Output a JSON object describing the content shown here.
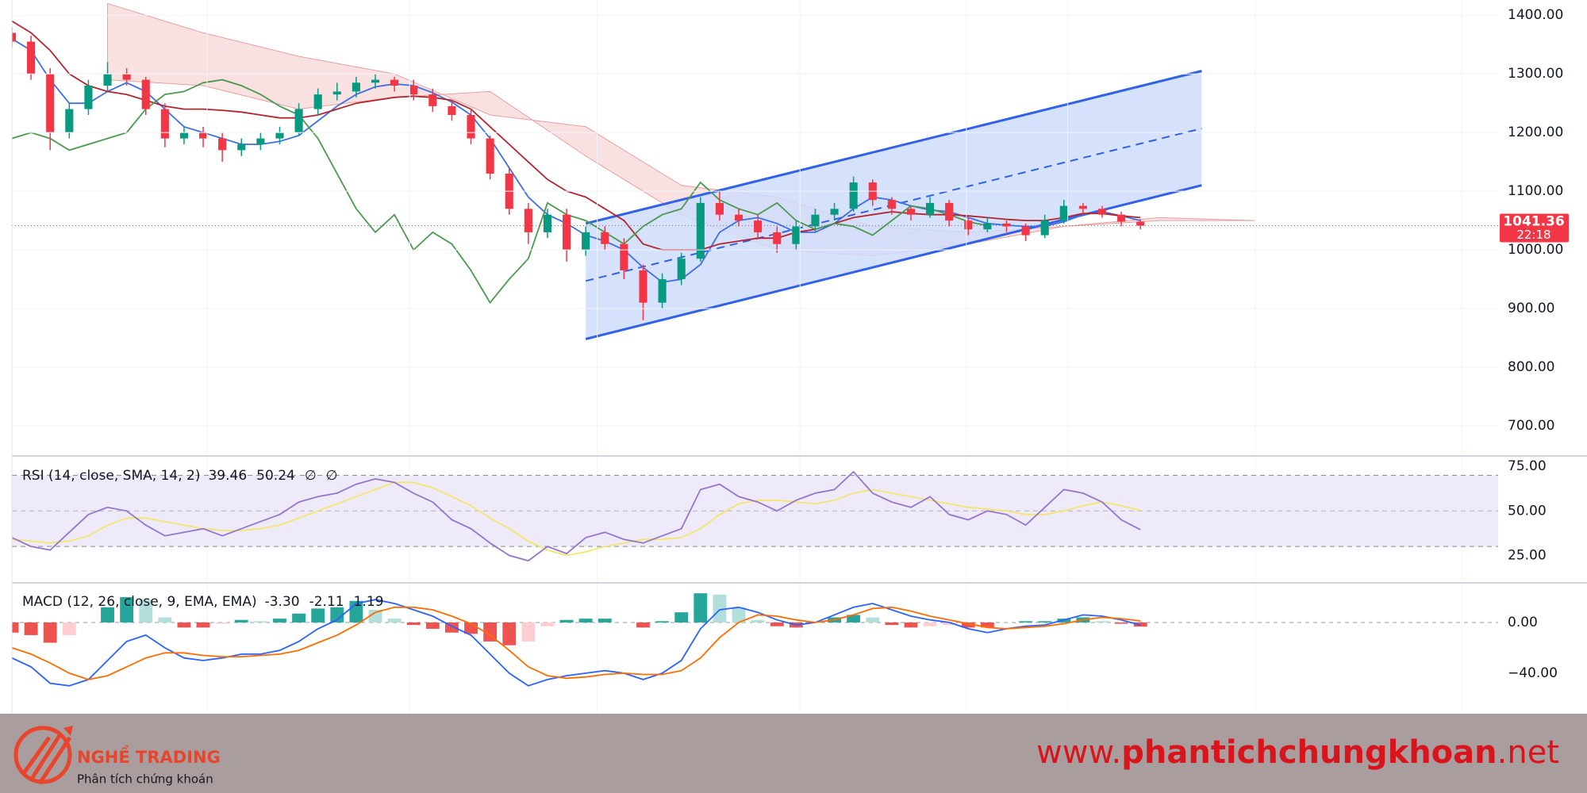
{
  "chart_data": [
    {
      "type": "candlestick",
      "xlim": [
        0,
        77.7
      ],
      "xgrid": [
        10.2,
        20.8,
        30.6,
        41.2,
        49.9,
        55.2,
        65,
        75.8
      ],
      "ylim": [
        650,
        1426
      ],
      "yticks": [
        {
          "value": 700,
          "label": "700.00"
        },
        {
          "value": 800,
          "label": "800.00"
        },
        {
          "value": 900,
          "label": "900.00"
        },
        {
          "value": 1000,
          "label": "1000.00"
        },
        {
          "value": 1100,
          "label": "1100.00"
        },
        {
          "value": 1200,
          "label": "1200.00"
        },
        {
          "value": 1300,
          "label": "1300.00"
        },
        {
          "value": 1400,
          "label": "1400.00"
        }
      ],
      "up_color": "#089981",
      "down_color": "#f23645",
      "open": [
        1370,
        1355,
        1300,
        1200,
        1240,
        1280,
        1300,
        1290,
        1240,
        1190,
        1200,
        1190,
        1170,
        1180,
        1190,
        1200,
        1240,
        1265,
        1270,
        1285,
        1290,
        1280,
        1265,
        1245,
        1230,
        1190,
        1130,
        1070,
        1030,
        1060,
        1000,
        1030,
        1010,
        965,
        910,
        950,
        985,
        1080,
        1060,
        1050,
        1030,
        1010,
        1040,
        1060,
        1070,
        1115,
        1085,
        1070,
        1060,
        1080,
        1050,
        1035,
        1045,
        1040,
        1025,
        1050,
        1075,
        1070,
        1060,
        1048
      ],
      "high": [
        1380,
        1365,
        1310,
        1250,
        1290,
        1320,
        1310,
        1295,
        1250,
        1210,
        1210,
        1200,
        1190,
        1200,
        1210,
        1250,
        1275,
        1285,
        1295,
        1300,
        1295,
        1290,
        1275,
        1255,
        1240,
        1195,
        1140,
        1080,
        1070,
        1070,
        1040,
        1040,
        1020,
        975,
        960,
        995,
        1090,
        1100,
        1070,
        1060,
        1040,
        1050,
        1070,
        1080,
        1125,
        1120,
        1090,
        1075,
        1090,
        1085,
        1055,
        1055,
        1050,
        1045,
        1060,
        1085,
        1080,
        1075,
        1065,
        1052
      ],
      "low": [
        1345,
        1290,
        1170,
        1190,
        1230,
        1270,
        1280,
        1230,
        1175,
        1180,
        1175,
        1150,
        1160,
        1170,
        1180,
        1195,
        1230,
        1255,
        1260,
        1275,
        1270,
        1255,
        1235,
        1220,
        1180,
        1120,
        1060,
        1010,
        1020,
        980,
        990,
        1000,
        950,
        880,
        900,
        940,
        980,
        1050,
        1040,
        1020,
        995,
        1000,
        1030,
        1050,
        1065,
        1075,
        1060,
        1050,
        1055,
        1040,
        1025,
        1030,
        1030,
        1015,
        1020,
        1045,
        1060,
        1055,
        1040,
        1035
      ],
      "close": [
        1355,
        1300,
        1200,
        1240,
        1280,
        1300,
        1290,
        1240,
        1190,
        1200,
        1190,
        1170,
        1180,
        1190,
        1200,
        1240,
        1265,
        1270,
        1285,
        1290,
        1280,
        1265,
        1245,
        1230,
        1190,
        1130,
        1070,
        1030,
        1060,
        1000,
        1030,
        1010,
        965,
        910,
        950,
        985,
        1080,
        1060,
        1050,
        1030,
        1010,
        1040,
        1060,
        1070,
        1115,
        1085,
        1070,
        1060,
        1080,
        1050,
        1035,
        1045,
        1040,
        1025,
        1050,
        1075,
        1070,
        1060,
        1048,
        1041.36
      ],
      "series": [
        {
          "color": "#3d6fe6",
          "values": [
            1360,
            1340,
            1290,
            1250,
            1250,
            1270,
            1285,
            1270,
            1240,
            1210,
            1200,
            1190,
            1180,
            1180,
            1185,
            1195,
            1220,
            1245,
            1265,
            1278,
            1283,
            1280,
            1268,
            1252,
            1230,
            1190,
            1140,
            1090,
            1060,
            1045,
            1025,
            1015,
            1000,
            970,
            945,
            950,
            975,
            1030,
            1050,
            1055,
            1045,
            1030,
            1030,
            1045,
            1070,
            1090,
            1085,
            1075,
            1068,
            1065,
            1055,
            1045,
            1042,
            1040,
            1040,
            1048,
            1060,
            1065,
            1058,
            1050
          ]
        },
        {
          "color": "#b3242f",
          "values": [
            1390,
            1370,
            1340,
            1300,
            1280,
            1270,
            1265,
            1255,
            1245,
            1240,
            1240,
            1238,
            1235,
            1230,
            1225,
            1225,
            1230,
            1240,
            1250,
            1255,
            1260,
            1262,
            1260,
            1255,
            1240,
            1210,
            1180,
            1150,
            1120,
            1100,
            1090,
            1070,
            1050,
            1010,
            1000,
            1000,
            1000,
            1010,
            1015,
            1020,
            1020,
            1030,
            1035,
            1045,
            1055,
            1060,
            1065,
            1062,
            1060,
            1060,
            1058,
            1055,
            1052,
            1050,
            1050,
            1055,
            1062,
            1062,
            1058,
            1055
          ]
        },
        {
          "color": "#4a9a4e",
          "values": [
            1190,
            1200,
            1190,
            1170,
            1180,
            1190,
            1200,
            1240,
            1265,
            1270,
            1285,
            1290,
            1280,
            1265,
            1245,
            1230,
            1190,
            1130,
            1070,
            1030,
            1060,
            1000,
            1030,
            1010,
            965,
            910,
            950,
            985,
            1080,
            1060,
            1050,
            1030,
            1010,
            1040,
            1060,
            1070,
            1115,
            1085,
            1070,
            1060,
            1080,
            1050,
            1035,
            1045,
            1040,
            1025,
            1050,
            1075,
            1070,
            1060,
            1048,
            1041.36,
            null,
            null,
            null,
            null,
            null,
            null,
            null,
            null
          ]
        }
      ],
      "cloud": {
        "color": "#f6c9c9",
        "x": [
          5,
          10,
          15,
          20,
          25,
          30,
          35,
          40,
          45,
          50,
          55,
          60,
          65
        ],
        "span_a": [
          1290,
          1280,
          1240,
          1260,
          1270,
          1160,
          1060,
          1000,
          990,
          1010,
          1040,
          1050,
          1050
        ],
        "span_b": [
          1420,
          1370,
          1330,
          1300,
          1230,
          1210,
          1110,
          1090,
          1040,
          1030,
          1040,
          1055,
          1050
        ]
      },
      "channel": {
        "color": "#2f62e8",
        "fill": "#cfdcfb",
        "x": [
          30,
          62.2
        ],
        "upper": [
          1045,
          1305
        ],
        "middle": [
          947,
          1207
        ],
        "lower": [
          848,
          1110
        ]
      },
      "last_price": {
        "value": 1041.36,
        "label": "1041.36"
      },
      "countdown": "22:18",
      "tag_color": "#f23645"
    },
    {
      "type": "line",
      "header": "RSI (14, close, SMA, 14, 2)",
      "header_values": [
        "39.46",
        "50.24",
        "∅",
        "∅"
      ],
      "header_colors": [
        "#7e57c2",
        "#e6d84a",
        "#131722",
        "#131722"
      ],
      "ylim": [
        10,
        80
      ],
      "yticks": [
        {
          "value": 25,
          "label": "25.00"
        },
        {
          "value": 50,
          "label": "50.00"
        },
        {
          "value": 75,
          "label": "75.00"
        }
      ],
      "bands": [
        30,
        50,
        70
      ],
      "band_fill": "#efeafa",
      "series": [
        {
          "color": "#9575cd",
          "values": [
            35,
            30,
            28,
            38,
            48,
            52,
            50,
            42,
            36,
            38,
            40,
            36,
            40,
            44,
            48,
            55,
            58,
            60,
            65,
            68,
            66,
            60,
            55,
            45,
            40,
            32,
            25,
            22,
            30,
            26,
            35,
            38,
            34,
            32,
            36,
            40,
            62,
            65,
            58,
            55,
            50,
            56,
            60,
            62,
            72,
            60,
            55,
            52,
            58,
            48,
            45,
            50,
            48,
            42,
            52,
            62,
            60,
            55,
            45,
            39.46
          ]
        },
        {
          "color": "#f2e66e",
          "values": [
            34,
            33,
            32,
            33,
            36,
            42,
            46,
            46,
            44,
            42,
            40,
            39,
            39,
            40,
            42,
            46,
            50,
            54,
            58,
            62,
            66,
            66,
            63,
            58,
            53,
            46,
            40,
            33,
            28,
            25,
            27,
            30,
            32,
            34,
            34,
            35,
            40,
            48,
            54,
            56,
            56,
            55,
            54,
            56,
            60,
            62,
            60,
            58,
            56,
            54,
            52,
            51,
            50,
            48,
            48,
            50,
            53,
            55,
            53,
            50.24
          ]
        }
      ]
    },
    {
      "type": "macd",
      "header": "MACD (12, 26, close, 9, EMA, EMA)",
      "header_values": [
        "-3.30",
        "-2.11",
        "1.19"
      ],
      "header_colors": [
        "#f23645",
        "#2962ff",
        "#ff6d00"
      ],
      "ylim": [
        -72,
        30
      ],
      "yticks": [
        {
          "value": -40,
          "label": "−40.00"
        },
        {
          "value": 0,
          "label": "0.00"
        }
      ],
      "histogram": {
        "colors": [
          "#26a69a",
          "#b2dfdb",
          "#ef5350",
          "#ffcdd2"
        ],
        "values": [
          -8,
          -10,
          -16,
          -10,
          0,
          12,
          20,
          18,
          4,
          -4,
          -4,
          -1,
          2,
          1,
          3,
          7,
          11,
          12,
          17,
          10,
          3,
          -2,
          -5,
          -8,
          -9,
          -15,
          -18,
          -15,
          -3,
          2,
          3,
          3,
          0,
          -4,
          1,
          8,
          23,
          22,
          12,
          2,
          -3,
          -4,
          0,
          4,
          6,
          4,
          -2,
          -4,
          -3,
          -2,
          -4,
          -4,
          0,
          1,
          1,
          3,
          4,
          1,
          -1,
          -3.3
        ]
      },
      "series": [
        {
          "color": "#2962ff",
          "values": [
            -28,
            -35,
            -48,
            -50,
            -45,
            -30,
            -15,
            -10,
            -20,
            -28,
            -30,
            -28,
            -25,
            -25,
            -22,
            -15,
            -5,
            2,
            15,
            18,
            15,
            10,
            5,
            -3,
            -10,
            -25,
            -40,
            -50,
            -45,
            -42,
            -40,
            -38,
            -40,
            -45,
            -40,
            -30,
            -5,
            10,
            12,
            8,
            2,
            -2,
            0,
            6,
            12,
            15,
            10,
            5,
            2,
            0,
            -5,
            -8,
            -5,
            -3,
            -2,
            2,
            6,
            5,
            2,
            -2.11
          ]
        },
        {
          "color": "#ff6d00",
          "values": [
            -20,
            -25,
            -32,
            -40,
            -45,
            -42,
            -35,
            -28,
            -24,
            -24,
            -26,
            -27,
            -27,
            -26,
            -25,
            -22,
            -16,
            -10,
            -2,
            8,
            12,
            12,
            10,
            5,
            -1,
            -10,
            -22,
            -35,
            -42,
            -44,
            -43,
            -41,
            -40,
            -41,
            -41,
            -38,
            -28,
            -12,
            0,
            6,
            5,
            2,
            0,
            2,
            6,
            11,
            12,
            9,
            5,
            2,
            -1,
            -4,
            -5,
            -4,
            -3,
            -1,
            2,
            4,
            3,
            1.19
          ]
        }
      ]
    }
  ],
  "footer": {
    "brand": "NGHỀ TRADING",
    "tagline": "Phân tích chứng khoán",
    "url_prefix": "www.",
    "url_main": "phantichchungkhoan",
    "url_suffix": ".net"
  }
}
